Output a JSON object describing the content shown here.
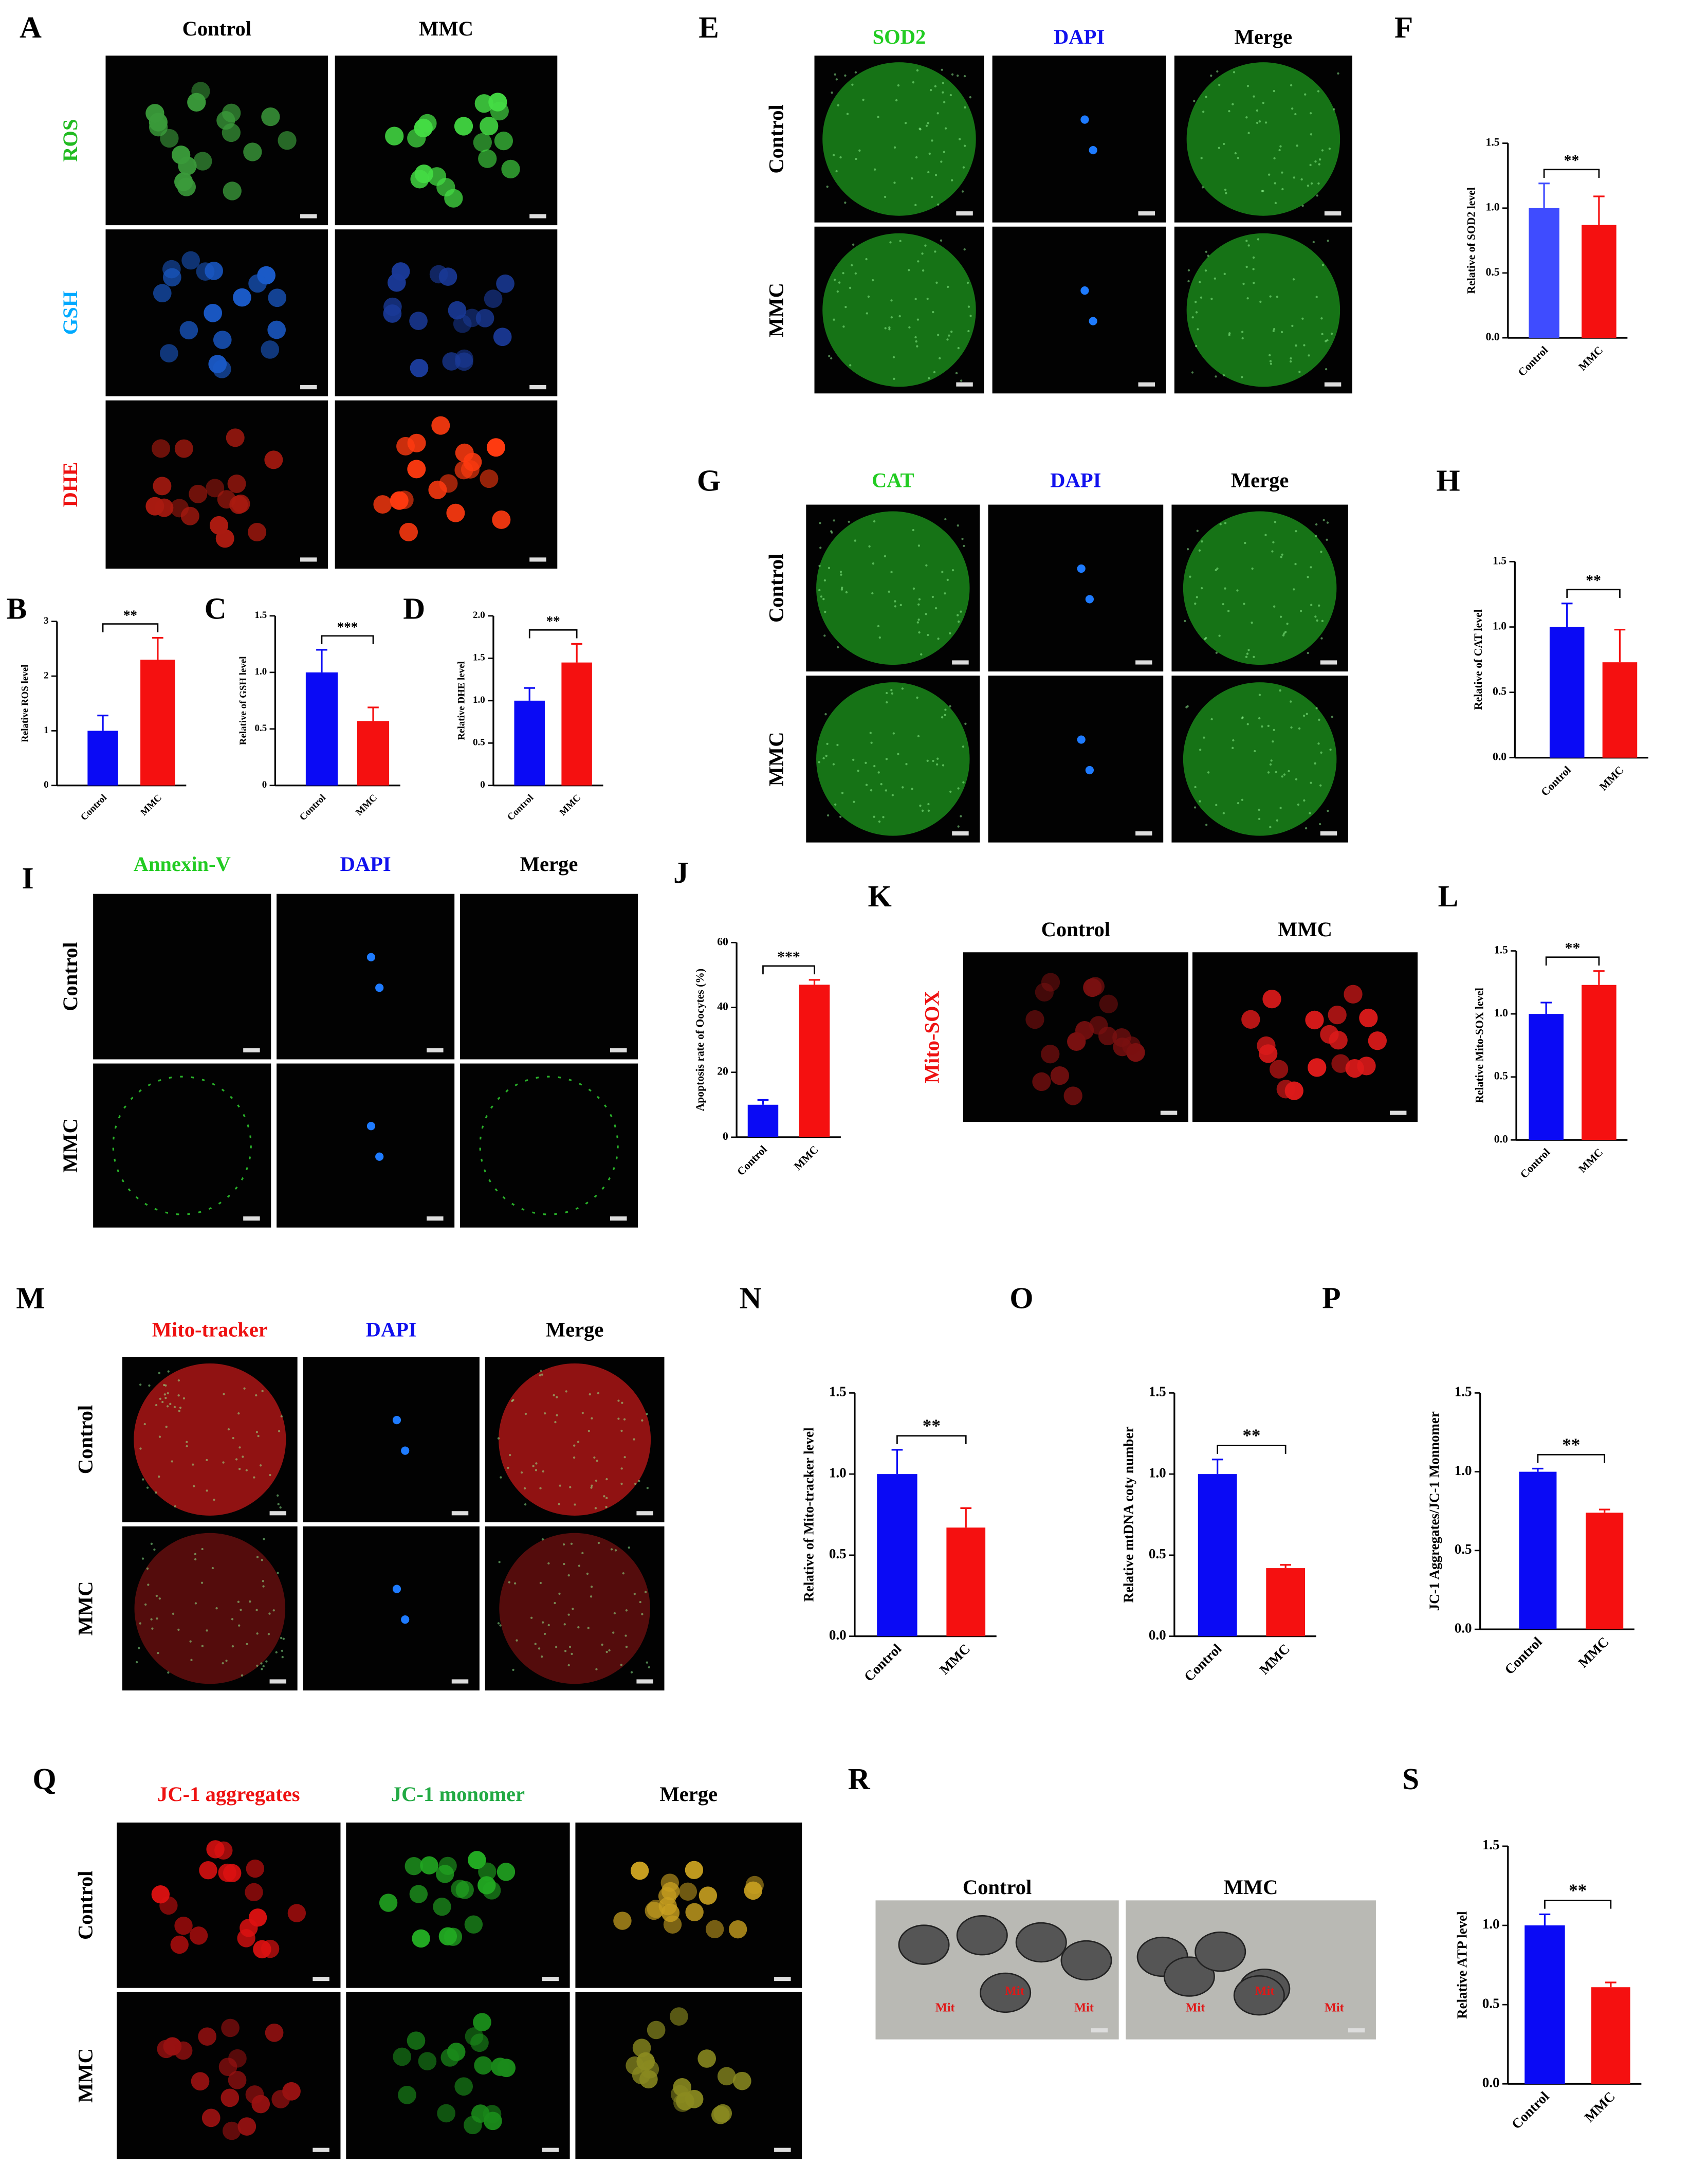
{
  "image_panels": [
    {
      "panel": "A",
      "columns": [
        "Control",
        "MMC"
      ],
      "rows": [
        "ROS",
        "GSH",
        "DHE"
      ]
    },
    {
      "panel": "E",
      "columns": [
        "SOD2",
        "DAPI",
        "Merge"
      ],
      "rows": [
        "Control",
        "MMC"
      ]
    },
    {
      "panel": "G",
      "columns": [
        "CAT",
        "DAPI",
        "Merge"
      ],
      "rows": [
        "Control",
        "MMC"
      ]
    },
    {
      "panel": "I",
      "columns": [
        "Annexin-V",
        "DAPI",
        "Merge"
      ],
      "rows": [
        "Control",
        "MMC"
      ]
    },
    {
      "panel": "K",
      "columns": [
        "Control",
        "MMC"
      ],
      "rows": [
        "Mito-SOX"
      ]
    },
    {
      "panel": "M",
      "columns": [
        "Mito-tracker",
        "DAPI",
        "Merge"
      ],
      "rows": [
        "Control",
        "MMC"
      ]
    },
    {
      "panel": "Q",
      "columns": [
        "JC-1 aggregates",
        "JC-1 monomer",
        "Merge"
      ],
      "rows": [
        "Control",
        "MMC"
      ]
    },
    {
      "panel": "R",
      "columns": [
        "Control",
        "MMC"
      ],
      "annotations": [
        [
          "Mit",
          "Mit",
          "Mit"
        ],
        [
          "Mit",
          "Mit",
          "Mit"
        ]
      ]
    }
  ],
  "chart_data": [
    {
      "type": "bar",
      "panel": "B",
      "y_label": "Relative ROS level",
      "categories": [
        "Control",
        "MMC"
      ],
      "values": [
        1.0,
        2.3
      ],
      "errors": [
        0.28,
        0.4
      ],
      "colors": [
        "#0a0af5",
        "#f51010"
      ],
      "significance": "**",
      "ylim": [
        0,
        3
      ],
      "yticks": [
        0,
        1,
        2,
        3
      ]
    },
    {
      "type": "bar",
      "panel": "C",
      "y_label": "Relative of GSH level",
      "categories": [
        "Control",
        "MMC"
      ],
      "values": [
        1.0,
        0.57
      ],
      "errors": [
        0.2,
        0.12
      ],
      "colors": [
        "#0a0af5",
        "#f51010"
      ],
      "significance": "***",
      "ylim": [
        0,
        1.5
      ],
      "yticks": [
        0,
        0.5,
        {
          "value": 1,
          "label": "1.0"
        },
        1.5
      ]
    },
    {
      "type": "bar",
      "panel": "D",
      "y_label": "Relative DHE level",
      "categories": [
        "Control",
        "MMC"
      ],
      "values": [
        1.0,
        1.45
      ],
      "errors": [
        0.15,
        0.22
      ],
      "colors": [
        "#0a0af5",
        "#f51010"
      ],
      "significance": "**",
      "ylim": [
        0,
        2
      ],
      "yticks": [
        0,
        0.5,
        {
          "value": 1,
          "label": "1.0"
        },
        1.5,
        {
          "value": 2,
          "label": "2.0"
        }
      ]
    },
    {
      "type": "bar",
      "panel": "F",
      "y_label": "Relative of SOD2 level",
      "categories": [
        "Control",
        "MMC"
      ],
      "values": [
        1.0,
        0.87
      ],
      "errors": [
        0.19,
        0.22
      ],
      "colors": [
        "#3f4cff",
        "#f51010"
      ],
      "significance": "**",
      "ylim": [
        0,
        1.5
      ],
      "yticks": [
        {
          "value": 0,
          "label": "0.0"
        },
        0.5,
        {
          "value": 1,
          "label": "1.0"
        },
        1.5
      ]
    },
    {
      "type": "bar",
      "panel": "H",
      "y_label": "Relative of CAT level",
      "categories": [
        "Control",
        "MMC"
      ],
      "values": [
        1.0,
        0.73
      ],
      "errors": [
        0.18,
        0.25
      ],
      "colors": [
        "#0a0af5",
        "#f51010"
      ],
      "significance": "**",
      "ylim": [
        0,
        1.5
      ],
      "yticks": [
        {
          "value": 0,
          "label": "0.0"
        },
        0.5,
        {
          "value": 1,
          "label": "1.0"
        },
        1.5
      ]
    },
    {
      "type": "bar",
      "panel": "J",
      "y_label": "Apoptosis rate of Oocytes (%)",
      "categories": [
        "Control",
        "MMC"
      ],
      "values": [
        10,
        47
      ],
      "errors": [
        1.5,
        1.5
      ],
      "colors": [
        "#0a0af5",
        "#f51010"
      ],
      "significance": "***",
      "ylim": [
        0,
        60
      ],
      "yticks": [
        0,
        20,
        40,
        60
      ]
    },
    {
      "type": "bar",
      "panel": "L",
      "y_label": "Relative Mito-SOX level",
      "categories": [
        "Control",
        "MMC"
      ],
      "values": [
        1.0,
        1.23
      ],
      "errors": [
        0.09,
        0.11
      ],
      "colors": [
        "#0a0af5",
        "#f51010"
      ],
      "significance": "**",
      "ylim": [
        0,
        1.5
      ],
      "yticks": [
        {
          "value": 0,
          "label": "0.0"
        },
        0.5,
        {
          "value": 1,
          "label": "1.0"
        },
        1.5
      ]
    },
    {
      "type": "bar",
      "panel": "N",
      "y_label": "Relative of Mito-tracker level",
      "categories": [
        "Control",
        "MMC"
      ],
      "values": [
        1.0,
        0.67
      ],
      "errors": [
        0.15,
        0.12
      ],
      "colors": [
        "#0a0af5",
        "#f51010"
      ],
      "significance": "**",
      "ylim": [
        0,
        1.5
      ],
      "yticks": [
        {
          "value": 0,
          "label": "0.0"
        },
        0.5,
        {
          "value": 1,
          "label": "1.0"
        },
        1.5
      ]
    },
    {
      "type": "bar",
      "panel": "O",
      "y_label": "Relative mtDNA coty number",
      "categories": [
        "Control",
        "MMC"
      ],
      "values": [
        1.0,
        0.42
      ],
      "errors": [
        0.09,
        0.02
      ],
      "colors": [
        "#0a0af5",
        "#f51010"
      ],
      "significance": "**",
      "ylim": [
        0,
        1.5
      ],
      "yticks": [
        {
          "value": 0,
          "label": "0.0"
        },
        0.5,
        {
          "value": 1,
          "label": "1.0"
        },
        1.5
      ]
    },
    {
      "type": "bar",
      "panel": "P",
      "y_label": "JC-1 Aggregates/JC-1 Monnomer",
      "categories": [
        "Control",
        "MMC"
      ],
      "values": [
        1.0,
        0.74
      ],
      "errors": [
        0.02,
        0.02
      ],
      "colors": [
        "#0a0af5",
        "#f51010"
      ],
      "significance": "**",
      "ylim": [
        0,
        1.5
      ],
      "yticks": [
        {
          "value": 0,
          "label": "0.0"
        },
        0.5,
        {
          "value": 1,
          "label": "1.0"
        },
        1.5
      ]
    },
    {
      "type": "bar",
      "panel": "S",
      "y_label": "Relative ATP level",
      "categories": [
        "Control",
        "MMC"
      ],
      "values": [
        1.0,
        0.61
      ],
      "errors": [
        0.07,
        0.03
      ],
      "colors": [
        "#0a0af5",
        "#f51010"
      ],
      "significance": "**",
      "ylim": [
        0,
        1.5
      ],
      "yticks": [
        {
          "value": 0,
          "label": "0.0"
        },
        0.5,
        {
          "value": 1,
          "label": "1.0"
        },
        1.5
      ]
    }
  ]
}
